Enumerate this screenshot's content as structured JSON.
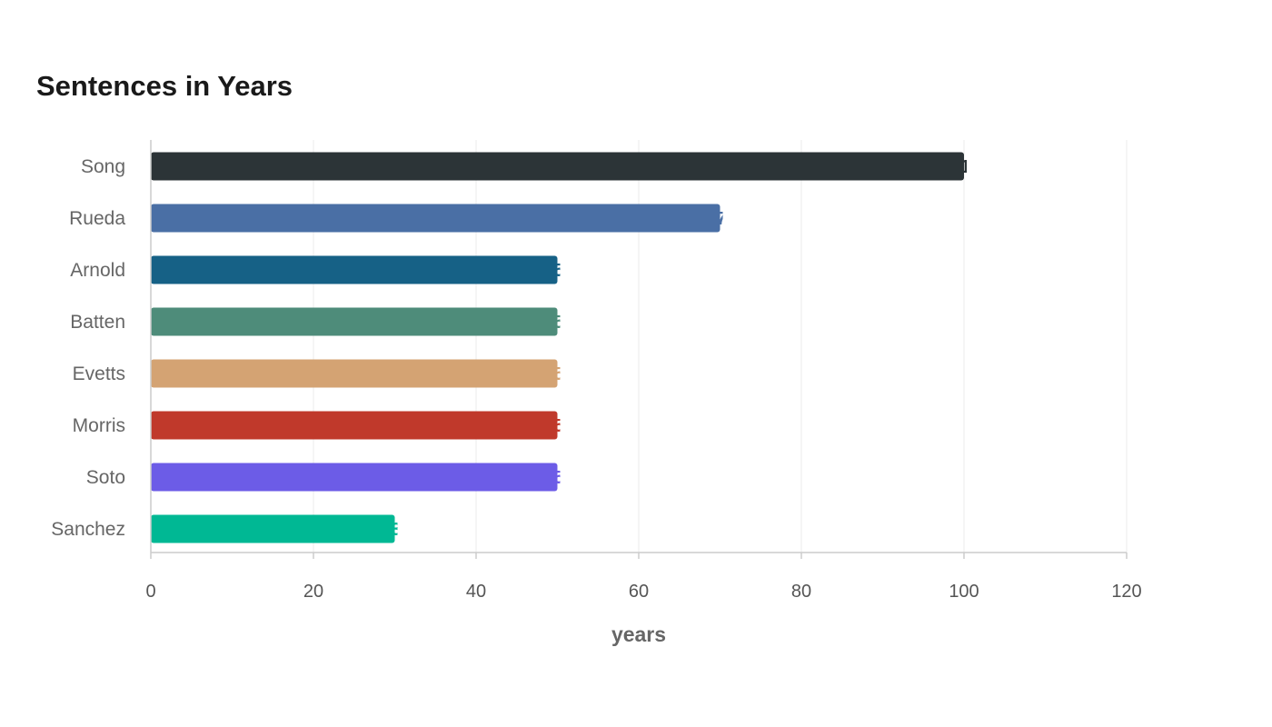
{
  "chart_data": {
    "type": "bar",
    "orientation": "horizontal",
    "title": "Sentences in Years",
    "xlabel": "years",
    "ylabel": "",
    "categories": [
      "Song",
      "Rueda",
      "Arnold",
      "Batten",
      "Evetts",
      "Morris",
      "Soto",
      "Sanchez"
    ],
    "values": [
      100,
      70,
      50,
      50,
      50,
      50,
      50,
      30
    ],
    "colors": [
      "#2c3437",
      "#4a6fa5",
      "#166186",
      "#4e8c7a",
      "#d4a373",
      "#c0392b",
      "#6c5ce7",
      "#00b894"
    ],
    "xlim": [
      0,
      120
    ],
    "xticks": [
      0,
      20,
      40,
      60,
      80,
      100,
      120
    ],
    "grid": true,
    "legend": "none"
  }
}
